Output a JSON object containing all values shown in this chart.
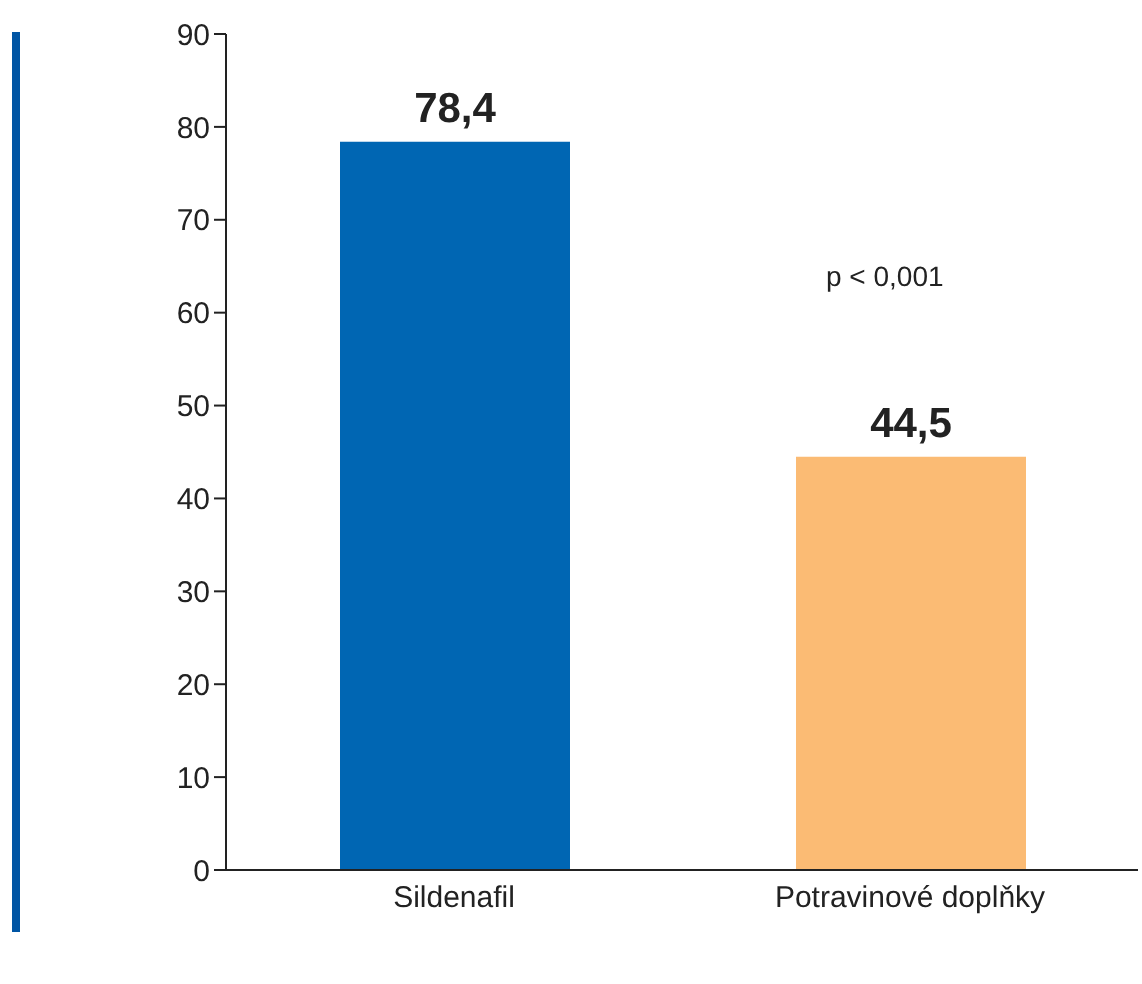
{
  "chart_data": {
    "type": "bar",
    "categories": [
      "Sildenafil",
      "Potravinové doplňky"
    ],
    "values": [
      78.4,
      44.5
    ],
    "colors": [
      "#0066b3",
      "#fbbb74"
    ],
    "value_labels": [
      "78,4",
      "44,5"
    ],
    "ylim": [
      0,
      90
    ],
    "yticks": [
      0,
      10,
      20,
      30,
      40,
      50,
      60,
      70,
      80,
      90
    ],
    "annotations": [
      "p < 0,001"
    ],
    "grid": false
  }
}
